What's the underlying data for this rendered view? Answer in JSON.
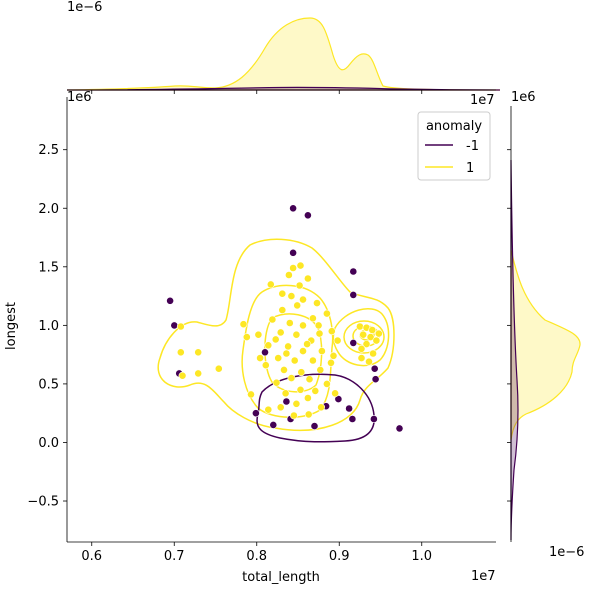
{
  "chart_data": {
    "type": "scatter",
    "kind": "jointplot with KDE contours and marginal KDE",
    "xlabel": "total_length",
    "ylabel": "longest",
    "x_offset_text": "1e7",
    "y_offset_text": "1e6",
    "top_marginal_offset_text": "1e−6",
    "right_marginal_offset_text": "1e−6",
    "xlim": [
      5700000.0,
      10900000.0
    ],
    "ylim": [
      -850000,
      2950000
    ],
    "x_ticks": [
      6000000,
      7000000,
      8000000,
      9000000,
      10000000
    ],
    "x_tick_labels": [
      "0.6",
      "0.7",
      "0.8",
      "0.9",
      "1.0"
    ],
    "y_ticks": [
      -500000,
      0,
      500000,
      1000000,
      1500000,
      2000000,
      2500000
    ],
    "y_tick_labels": [
      "−0.5",
      "0.0",
      "0.5",
      "1.0",
      "1.5",
      "2.0",
      "2.5"
    ],
    "legend": {
      "title": "anomaly",
      "placement": "upper-right",
      "entries": [
        {
          "label": "-1",
          "color": "#440154"
        },
        {
          "label": "1",
          "color": "#fde725"
        }
      ]
    },
    "series": [
      {
        "name": "-1",
        "color": "#440154",
        "points": [
          [
            8440000,
            2000000
          ],
          [
            8620000,
            1940000
          ],
          [
            8440000,
            1620000
          ],
          [
            9170000,
            1460000
          ],
          [
            9170000,
            1260000
          ],
          [
            6950000,
            1210000
          ],
          [
            7000000,
            1000000
          ],
          [
            9170000,
            850000
          ],
          [
            9430000,
            630000
          ],
          [
            9440000,
            540000
          ],
          [
            7060000,
            590000
          ],
          [
            8100000,
            770000
          ],
          [
            8990000,
            370000
          ],
          [
            8840000,
            310000
          ],
          [
            9120000,
            290000
          ],
          [
            9160000,
            200000
          ],
          [
            8700000,
            140000
          ],
          [
            8200000,
            150000
          ],
          [
            8410000,
            200000
          ],
          [
            7990000,
            250000
          ],
          [
            8360000,
            350000
          ],
          [
            9730000,
            120000
          ],
          [
            9420000,
            200000
          ]
        ]
      },
      {
        "name": "1",
        "color": "#fde725",
        "points": [
          [
            8530000,
            1510000
          ],
          [
            8440000,
            1490000
          ],
          [
            8390000,
            1430000
          ],
          [
            8620000,
            1400000
          ],
          [
            8520000,
            1340000
          ],
          [
            8170000,
            1350000
          ],
          [
            8420000,
            1250000
          ],
          [
            8310000,
            1270000
          ],
          [
            8560000,
            1220000
          ],
          [
            8490000,
            1170000
          ],
          [
            8730000,
            1190000
          ],
          [
            8310000,
            1130000
          ],
          [
            8680000,
            1060000
          ],
          [
            8850000,
            1100000
          ],
          [
            8400000,
            1020000
          ],
          [
            8190000,
            1050000
          ],
          [
            8560000,
            1000000
          ],
          [
            8750000,
            1000000
          ],
          [
            8910000,
            950000
          ],
          [
            8290000,
            940000
          ],
          [
            8480000,
            920000
          ],
          [
            8020000,
            920000
          ],
          [
            7840000,
            1010000
          ],
          [
            8230000,
            880000
          ],
          [
            8660000,
            870000
          ],
          [
            8980000,
            870000
          ],
          [
            8380000,
            820000
          ],
          [
            8140000,
            830000
          ],
          [
            8560000,
            780000
          ],
          [
            8790000,
            780000
          ],
          [
            8260000,
            720000
          ],
          [
            8460000,
            700000
          ],
          [
            8680000,
            700000
          ],
          [
            8930000,
            740000
          ],
          [
            8110000,
            660000
          ],
          [
            8330000,
            620000
          ],
          [
            8540000,
            600000
          ],
          [
            8770000,
            620000
          ],
          [
            8420000,
            550000
          ],
          [
            8640000,
            540000
          ],
          [
            8240000,
            510000
          ],
          [
            8850000,
            500000
          ],
          [
            8530000,
            450000
          ],
          [
            8710000,
            440000
          ],
          [
            8350000,
            420000
          ],
          [
            8950000,
            420000
          ],
          [
            8620000,
            380000
          ],
          [
            8480000,
            330000
          ],
          [
            8780000,
            300000
          ],
          [
            8290000,
            300000
          ],
          [
            8630000,
            240000
          ],
          [
            8450000,
            230000
          ],
          [
            7930000,
            410000
          ],
          [
            8140000,
            280000
          ],
          [
            7080000,
            990000
          ],
          [
            7080000,
            770000
          ],
          [
            7290000,
            770000
          ],
          [
            7290000,
            590000
          ],
          [
            7540000,
            630000
          ],
          [
            7100000,
            570000
          ],
          [
            7880000,
            900000
          ],
          [
            8040000,
            720000
          ],
          [
            9250000,
            990000
          ],
          [
            9330000,
            980000
          ],
          [
            9400000,
            960000
          ],
          [
            9290000,
            920000
          ],
          [
            9380000,
            900000
          ],
          [
            9450000,
            870000
          ],
          [
            9330000,
            840000
          ],
          [
            9270000,
            800000
          ],
          [
            9410000,
            760000
          ],
          [
            9360000,
            690000
          ],
          [
            9270000,
            720000
          ],
          [
            9480000,
            930000
          ],
          [
            8610000,
            840000
          ],
          [
            8760000,
            930000
          ],
          [
            8360000,
            760000
          ],
          [
            8900000,
            680000
          ]
        ]
      }
    ]
  }
}
